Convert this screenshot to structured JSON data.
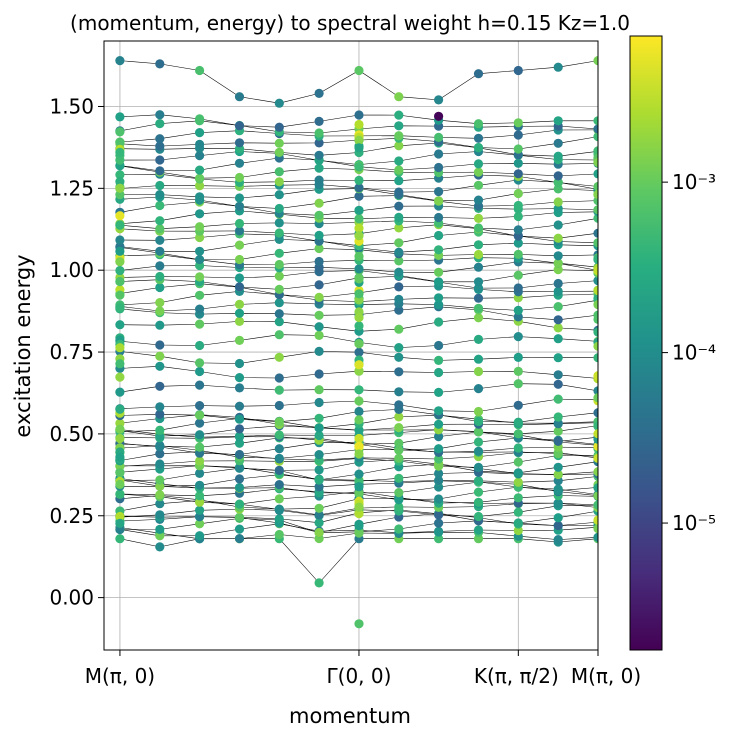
{
  "chart_data": {
    "type": "scatter",
    "title": "(momentum, energy) to spectral weight h=0.15 Kz=1.0",
    "xlabel": "momentum",
    "ylabel": "excitation energy",
    "ylim": [
      -0.16,
      1.7
    ],
    "xlim": [
      -0.1,
      3.0
    ],
    "grid": true,
    "x_ticks": [
      {
        "value": 0,
        "label": "M(π, 0)"
      },
      {
        "value": 1.5,
        "label": "Γ(0, 0)"
      },
      {
        "value": 2.5,
        "label": "K(π, π/2)"
      },
      {
        "value": 3.0,
        "label": "M(π, 0)"
      }
    ],
    "y_ticks": [
      "0.00",
      "0.25",
      "0.50",
      "0.75",
      "1.00",
      "1.25",
      "1.50"
    ],
    "y_tick_values": [
      0.0,
      0.25,
      0.5,
      0.75,
      1.0,
      1.25,
      1.5
    ],
    "momentum_x": [
      0.0,
      0.25,
      0.5,
      0.75,
      1.0,
      1.25,
      1.5,
      1.75,
      2.0,
      2.25,
      2.5,
      2.75,
      3.0
    ],
    "band_lines": "thin black lines connect the n-th excitation level across momenta",
    "lowest_band_energies": [
      0.18,
      0.155,
      0.18,
      0.18,
      0.18,
      0.045,
      0.18,
      0.18,
      0.18,
      0.18,
      0.18,
      0.17,
      0.18
    ],
    "top_band_energies": [
      1.64,
      1.63,
      1.61,
      1.53,
      1.51,
      1.54,
      1.61,
      1.53,
      1.52,
      1.6,
      1.61,
      1.62,
      1.64
    ],
    "isolated_points": [
      {
        "x": 1.5,
        "y": -0.08,
        "weight": 0.0007
      },
      {
        "x": 2.0,
        "y": 1.47,
        "weight": 2e-06
      }
    ],
    "colorbar": {
      "colormap": "viridis",
      "scale": "log",
      "min": 1.8e-06,
      "max": 0.0072,
      "ticks": [
        {
          "value": 1e-05,
          "label": "10⁻⁵"
        },
        {
          "value": 0.0001,
          "label": "10⁻⁴"
        },
        {
          "value": 0.001,
          "label": "10⁻³"
        }
      ]
    }
  }
}
